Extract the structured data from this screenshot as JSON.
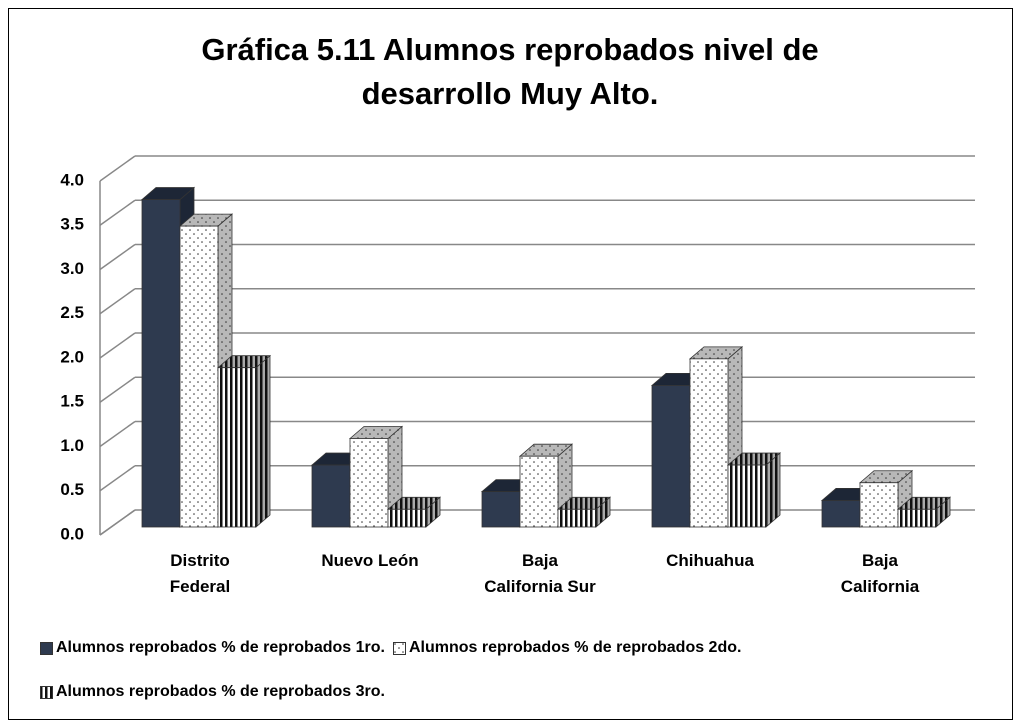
{
  "chart_data": {
    "type": "bar3d",
    "title": "Gráfica 5.11 Alumnos reprobados nivel de desarrollo Muy Alto.",
    "categories": [
      "Distrito Federal",
      "Nuevo León",
      "Baja California Sur",
      "Chihuahua",
      "Baja California"
    ],
    "series": [
      {
        "name": "Alumnos reprobados % de reprobados 1ro.",
        "color": "#2e3a4f",
        "pattern": "solid",
        "values": [
          3.7,
          0.7,
          0.4,
          1.6,
          0.3
        ]
      },
      {
        "name": "Alumnos reprobados % de reprobados 2do.",
        "color": "#ffffff",
        "pattern": "dots",
        "values": [
          3.4,
          1.0,
          0.8,
          1.9,
          0.5
        ]
      },
      {
        "name": "Alumnos reprobados % de reprobados 3ro.",
        "color": "#ffffff",
        "pattern": "vertical-stripes",
        "values": [
          1.8,
          0.2,
          0.2,
          0.7,
          0.2
        ]
      }
    ],
    "ylim": [
      0,
      4
    ],
    "yticks": [
      {
        "value": 0,
        "label": "0.0"
      },
      {
        "value": 0.5,
        "label": "0.5"
      },
      {
        "value": 1,
        "label": "1.0"
      },
      {
        "value": 1.5,
        "label": "1.5"
      },
      {
        "value": 2,
        "label": "2.0"
      },
      {
        "value": 2.5,
        "label": "2.5"
      },
      {
        "value": 3,
        "label": "3.0"
      },
      {
        "value": 3.5,
        "label": "3.5"
      },
      {
        "value": 4,
        "label": "4.0"
      }
    ],
    "grid": true,
    "legend": "bottom"
  }
}
